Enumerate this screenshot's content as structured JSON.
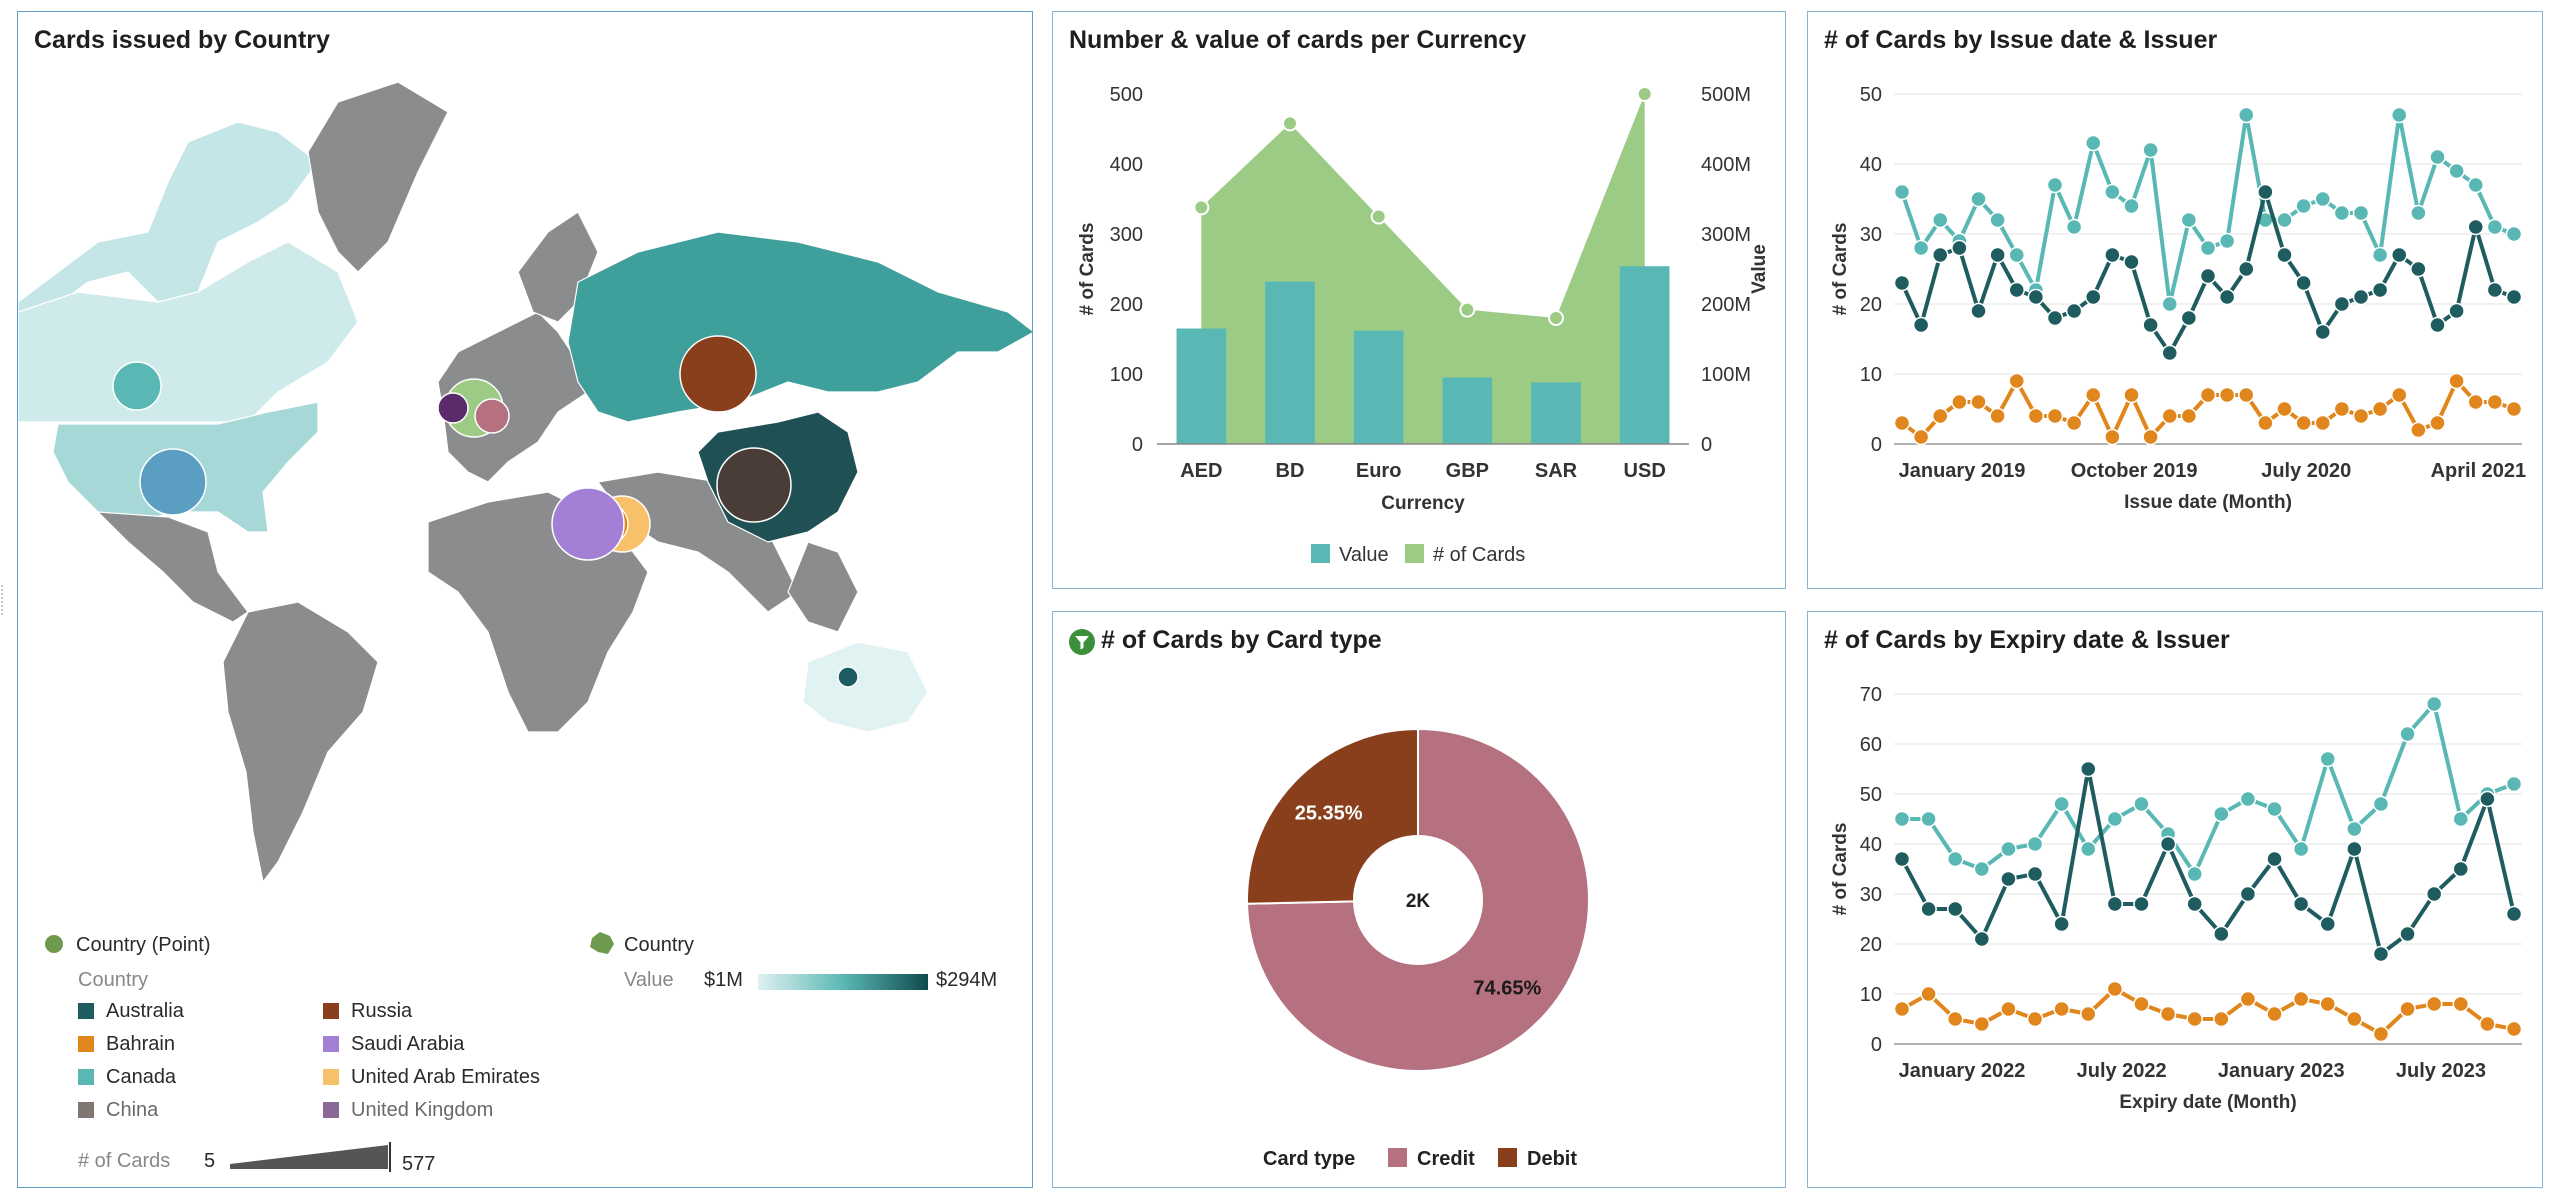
{
  "map_panel": {
    "title": "Cards issued by Country",
    "legend": {
      "point_label": "Country (Point)",
      "area_label": "Country",
      "country_heading": "Country",
      "value_label": "Value",
      "value_min": "$1M",
      "value_max": "$294M",
      "size_label": "# of Cards",
      "size_min": "5",
      "size_max": "577",
      "countries": [
        {
          "name": "Australia",
          "color": "#1f5c60"
        },
        {
          "name": "Russia",
          "color": "#8a3f1c"
        },
        {
          "name": "Bahrain",
          "color": "#e0861d"
        },
        {
          "name": "Saudi Arabia",
          "color": "#a47fd6"
        },
        {
          "name": "Canada",
          "color": "#5ab8b4"
        },
        {
          "name": "United Arab Emirates",
          "color": "#f9c06a"
        },
        {
          "name": "China",
          "color": "#4a3d38"
        },
        {
          "name": "United Kingdom",
          "color": "#5a2a6b"
        }
      ]
    }
  },
  "chart_data": [
    {
      "type": "bar",
      "title": "Number & value of cards per Currency",
      "categories": [
        "AED",
        "BD",
        "Euro",
        "GBP",
        "SAR",
        "USD"
      ],
      "series": [
        {
          "name": "Value",
          "kind": "bar",
          "axis": "right",
          "values": [
            165,
            232,
            162,
            95,
            88,
            254
          ],
          "color": "#5ab8b4"
        },
        {
          "name": "# of Cards",
          "kind": "area",
          "axis": "left",
          "values": [
            338,
            458,
            325,
            192,
            180,
            500
          ],
          "color": "#9ccb86"
        }
      ],
      "xlabel": "Currency",
      "ylabel": "# of Cards",
      "y2label": "Value",
      "ylim": [
        0,
        500
      ],
      "y2lim": [
        0,
        500
      ],
      "yticks": [
        "0",
        "100",
        "200",
        "300",
        "400",
        "500"
      ],
      "y2ticks": [
        "0",
        "100M",
        "200M",
        "300M",
        "400M",
        "500M"
      ],
      "legend": "bottom"
    },
    {
      "type": "line",
      "title": "# of Cards by Issue date & Issuer",
      "xlabel": "Issue date (Month)",
      "ylabel": "# of Cards",
      "ylim": [
        0,
        50
      ],
      "yticks": [
        "0",
        "10",
        "20",
        "30",
        "40",
        "50"
      ],
      "xticks": [
        {
          "label": "January 2019",
          "index": 0
        },
        {
          "label": "October 2019",
          "index": 9
        },
        {
          "label": "July 2020",
          "index": 18
        },
        {
          "label": "April 2021",
          "index": 27
        }
      ],
      "series": [
        {
          "color": "#5ab8b4",
          "values": [
            36,
            28,
            32,
            29,
            35,
            32,
            27,
            22,
            37,
            31,
            43,
            36,
            34,
            42,
            20,
            32,
            28,
            29,
            47,
            32,
            32,
            34,
            35,
            33,
            33,
            27,
            47,
            33,
            41,
            39,
            37,
            31,
            30
          ]
        },
        {
          "color": "#1f5c60",
          "values": [
            23,
            17,
            27,
            28,
            19,
            27,
            22,
            21,
            18,
            19,
            21,
            27,
            26,
            17,
            13,
            18,
            24,
            21,
            25,
            36,
            27,
            23,
            16,
            20,
            21,
            22,
            27,
            25,
            17,
            19,
            31,
            22,
            21
          ]
        },
        {
          "color": "#e0861d",
          "values": [
            3,
            1,
            4,
            6,
            6,
            4,
            9,
            4,
            4,
            3,
            7,
            1,
            7,
            1,
            4,
            4,
            7,
            7,
            7,
            3,
            5,
            3,
            3,
            5,
            4,
            5,
            7,
            2,
            3,
            9,
            6,
            6,
            5
          ]
        }
      ]
    },
    {
      "type": "pie",
      "title": "# of Cards by Card type",
      "center_label": "2K",
      "legend_title": "Card type",
      "slices": [
        {
          "name": "Credit",
          "value": 74.65,
          "label": "74.65%",
          "color": "#b5717f"
        },
        {
          "name": "Debit",
          "value": 25.35,
          "label": "25.35%",
          "color": "#8a3f1c"
        }
      ],
      "legend": "bottom"
    },
    {
      "type": "line",
      "title": "# of Cards by Expiry date & Issuer",
      "xlabel": "Expiry date (Month)",
      "ylabel": "# of Cards",
      "ylim": [
        0,
        70
      ],
      "yticks": [
        "0",
        "10",
        "20",
        "30",
        "40",
        "50",
        "60",
        "70"
      ],
      "xticks": [
        {
          "label": "January 2022",
          "index": 0
        },
        {
          "label": "July 2022",
          "index": 6
        },
        {
          "label": "January 2023",
          "index": 12
        },
        {
          "label": "July 2023",
          "index": 18
        }
      ],
      "series": [
        {
          "color": "#5ab8b4",
          "values": [
            45,
            45,
            37,
            35,
            39,
            40,
            48,
            39,
            45,
            48,
            42,
            34,
            46,
            49,
            47,
            39,
            57,
            43,
            48,
            62,
            68,
            45,
            50,
            52
          ]
        },
        {
          "color": "#1f5c60",
          "values": [
            37,
            27,
            27,
            21,
            33,
            34,
            24,
            55,
            28,
            28,
            40,
            28,
            22,
            30,
            37,
            28,
            24,
            39,
            18,
            22,
            30,
            35,
            49,
            26
          ]
        },
        {
          "color": "#e0861d",
          "values": [
            7,
            10,
            5,
            4,
            7,
            5,
            7,
            6,
            11,
            8,
            6,
            5,
            5,
            9,
            6,
            9,
            8,
            5,
            2,
            7,
            8,
            8,
            4,
            3
          ]
        }
      ]
    }
  ]
}
